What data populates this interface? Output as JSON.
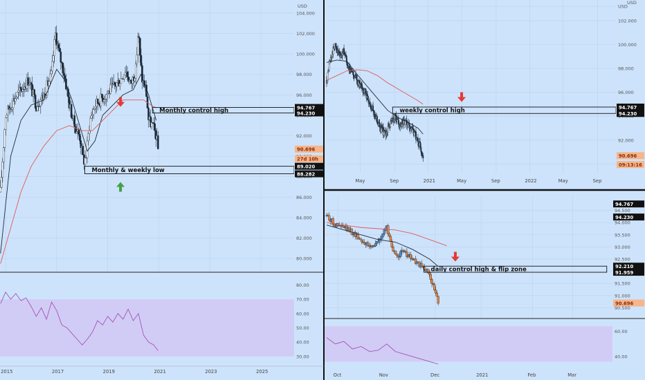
{
  "chart_data": [
    {
      "type": "candlestick",
      "timeframe": "weekly",
      "instrument_currency": "USD",
      "x_tick_labels": [
        "2015",
        "2017",
        "2019",
        "2021",
        "2023",
        "2025"
      ],
      "x_ticks": [
        2015,
        2017,
        2019,
        2021,
        2023,
        2025
      ],
      "ylim": [
        79.0,
        105.0
      ],
      "y_tick_labels": [
        "104.000",
        "102.000",
        "100.000",
        "98.000",
        "96.000",
        "94.000",
        "92.000",
        "90.000",
        "88.000",
        "86.000",
        "84.000",
        "82.000",
        "80.000"
      ],
      "y_ticks": [
        104,
        102,
        100,
        98,
        96,
        94,
        92,
        90,
        88,
        86,
        84,
        82,
        80
      ],
      "price_markers": [
        {
          "text": "94.767",
          "value": 94.767,
          "style": "dark"
        },
        {
          "text": "94.230",
          "value": 94.23,
          "style": "dark"
        },
        {
          "text": "90.696",
          "value": 90.696,
          "style": "orange"
        },
        {
          "text": "27d 10h",
          "value": 89.75,
          "style": "orange"
        },
        {
          "text": "89.020",
          "value": 89.02,
          "style": "dark"
        },
        {
          "text": "88.282",
          "value": 88.282,
          "style": "dark"
        }
      ],
      "zones": [
        {
          "label": "Monthly control high",
          "x_start": 2020.75,
          "x_end": 2027.0,
          "y_low": 94.23,
          "y_high": 94.767
        },
        {
          "label": "Monthly & weekly low",
          "x_start": 2018.1,
          "x_end": 2027.0,
          "y_low": 88.282,
          "y_high": 89.02
        }
      ],
      "arrows": [
        {
          "direction": "down",
          "color": "#e53935",
          "x": 2019.5,
          "y": 95.3
        },
        {
          "direction": "up",
          "color": "#43a047",
          "x": 2019.5,
          "y": 87.0
        }
      ],
      "series": [
        {
          "kind": "close",
          "x": [
            2014.8,
            2015.0,
            2015.3,
            2015.6,
            2015.9,
            2016.2,
            2016.5,
            2016.8,
            2016.95,
            2017.1,
            2017.3,
            2017.5,
            2017.7,
            2017.9,
            2018.05,
            2018.15,
            2018.3,
            2018.5,
            2018.7,
            2018.9,
            2019.1,
            2019.3,
            2019.5,
            2019.7,
            2019.9,
            2020.1,
            2020.2,
            2020.25,
            2020.35,
            2020.5,
            2020.6,
            2020.75,
            2020.9,
            2020.97
          ],
          "values": [
            86.5,
            94.0,
            95.5,
            96.5,
            97.5,
            95.0,
            96.0,
            98.0,
            102.0,
            100.0,
            98.0,
            95.0,
            93.0,
            92.0,
            89.5,
            90.0,
            93.5,
            95.0,
            95.5,
            96.0,
            96.5,
            97.0,
            97.5,
            98.5,
            97.0,
            98.5,
            102.5,
            100.0,
            97.5,
            96.5,
            93.5,
            93.0,
            92.0,
            90.7
          ]
        },
        {
          "kind": "ma_dark",
          "x": [
            2014.8,
            2015.2,
            2015.6,
            2016.0,
            2016.5,
            2017.0,
            2017.3,
            2017.6,
            2017.9,
            2018.2,
            2018.5,
            2018.8,
            2019.2,
            2019.6,
            2020.0,
            2020.3,
            2020.6,
            2020.9
          ],
          "values": [
            80.5,
            90.0,
            93.5,
            95.0,
            95.5,
            98.5,
            97.5,
            95.5,
            93.0,
            90.5,
            91.5,
            94.0,
            95.0,
            96.0,
            96.5,
            98.0,
            96.0,
            93.5
          ]
        },
        {
          "kind": "ma_red",
          "x": [
            2014.8,
            2015.2,
            2015.6,
            2016.0,
            2016.5,
            2017.0,
            2017.5,
            2018.0,
            2018.4,
            2018.8,
            2019.2,
            2019.6,
            2020.0,
            2020.4,
            2020.7,
            2020.9
          ],
          "values": [
            79.5,
            83.0,
            86.5,
            89.0,
            91.0,
            92.5,
            93.0,
            92.5,
            92.5,
            93.5,
            94.5,
            95.5,
            95.5,
            95.5,
            95.0,
            94.7
          ]
        }
      ],
      "oscillator": {
        "ylim": [
          27,
          87
        ],
        "y_tick_labels": [
          "80.00",
          "70.00",
          "60.00",
          "50.00",
          "40.00",
          "30.00"
        ],
        "y_ticks": [
          80,
          70,
          60,
          50,
          40,
          30
        ],
        "band": [
          30,
          70
        ],
        "x": [
          2014.8,
          2015.0,
          2015.2,
          2015.4,
          2015.6,
          2015.8,
          2016.0,
          2016.2,
          2016.4,
          2016.6,
          2016.8,
          2017.0,
          2017.2,
          2017.4,
          2017.6,
          2017.8,
          2018.0,
          2018.2,
          2018.4,
          2018.6,
          2018.8,
          2019.0,
          2019.2,
          2019.4,
          2019.6,
          2019.8,
          2020.0,
          2020.2,
          2020.4,
          2020.6,
          2020.8,
          2020.97
        ],
        "values": [
          67,
          75,
          70,
          74,
          69,
          71,
          65,
          58,
          64,
          56,
          68,
          62,
          52,
          50,
          46,
          42,
          38,
          42,
          47,
          55,
          52,
          58,
          54,
          60,
          56,
          63,
          55,
          60,
          45,
          40,
          38,
          34
        ]
      }
    },
    {
      "type": "candlestick",
      "timeframe": "daily",
      "instrument_currency": "USD",
      "x_tick_labels": [
        "May",
        "Sep",
        "2021",
        "May",
        "Sep",
        "2022",
        "May",
        "Sep"
      ],
      "x_ticks": [
        2020.33,
        2020.67,
        2021.0,
        2021.33,
        2021.67,
        2022.0,
        2022.33,
        2022.67
      ],
      "ylim": [
        89.5,
        103.5
      ],
      "y_tick_labels": [
        "USD",
        "102.000",
        "100.000",
        "98.000",
        "96.000",
        "94.000",
        "92.000",
        "90.000"
      ],
      "y_ticks": [
        103.2,
        102,
        100,
        98,
        96,
        94,
        92,
        90
      ],
      "price_markers": [
        {
          "text": "94.767",
          "value": 94.767,
          "style": "dark"
        },
        {
          "text": "94.230",
          "value": 94.23,
          "style": "dark"
        },
        {
          "text": "90.696",
          "value": 90.696,
          "style": "orange"
        },
        {
          "text": "09:13:16",
          "value": 89.95,
          "style": "orange"
        }
      ],
      "zones": [
        {
          "label": "weekly control high",
          "x_start": 2020.65,
          "x_end": 2022.85,
          "y_low": 94.23,
          "y_high": 94.767
        }
      ],
      "arrows": [
        {
          "direction": "down",
          "color": "#e53935",
          "x": 2021.33,
          "y": 95.6
        }
      ],
      "series": [
        {
          "kind": "close",
          "x": [
            2020.0,
            2020.03,
            2020.08,
            2020.13,
            2020.17,
            2020.22,
            2020.27,
            2020.33,
            2020.38,
            2020.43,
            2020.48,
            2020.53,
            2020.58,
            2020.63,
            2020.68,
            2020.72,
            2020.77,
            2020.82,
            2020.87,
            2020.92,
            2020.95
          ],
          "values": [
            97.0,
            98.5,
            100.0,
            99.0,
            99.5,
            98.0,
            97.5,
            96.5,
            96.0,
            95.0,
            94.0,
            93.0,
            92.5,
            93.5,
            94.0,
            93.0,
            93.5,
            93.0,
            92.5,
            91.5,
            90.7
          ]
        },
        {
          "kind": "ma_dark",
          "x": [
            2020.0,
            2020.1,
            2020.2,
            2020.3,
            2020.4,
            2020.5,
            2020.6,
            2020.7,
            2020.8,
            2020.9,
            2020.95
          ],
          "values": [
            98.5,
            98.7,
            98.6,
            97.5,
            96.5,
            95.5,
            94.5,
            93.9,
            93.5,
            93.0,
            92.5
          ]
        },
        {
          "kind": "ma_red",
          "x": [
            2020.0,
            2020.1,
            2020.2,
            2020.3,
            2020.4,
            2020.5,
            2020.6,
            2020.7,
            2020.8,
            2020.9,
            2020.95
          ],
          "values": [
            97.0,
            97.4,
            97.8,
            97.9,
            97.8,
            97.4,
            96.8,
            96.3,
            95.8,
            95.3,
            95.0
          ]
        }
      ]
    },
    {
      "type": "candlestick",
      "timeframe": "daily",
      "instrument_currency": "USD",
      "x_tick_labels": [
        "Oct",
        "Nov",
        "Dec",
        "2021",
        "Feb",
        "Mar"
      ],
      "x_ticks": [
        2020.75,
        2020.83,
        2020.92,
        2021.0,
        2021.09,
        2021.16
      ],
      "ylim": [
        90.2,
        95.0
      ],
      "y_tick_labels": [
        "94.500",
        "94.000",
        "93.500",
        "93.000",
        "92.500",
        "92.000",
        "91.500",
        "91.000",
        "90.500"
      ],
      "y_ticks": [
        94.5,
        94.0,
        93.5,
        93.0,
        92.5,
        92.0,
        91.5,
        91.0,
        90.5
      ],
      "price_markers": [
        {
          "text": "94.767",
          "value": 94.767,
          "style": "dark"
        },
        {
          "text": "94.230",
          "value": 94.23,
          "style": "dark"
        },
        {
          "text": "92.210",
          "value": 92.21,
          "style": "dark"
        },
        {
          "text": "91.959",
          "value": 91.959,
          "style": "dark"
        },
        {
          "text": "90.696",
          "value": 90.696,
          "style": "orange"
        }
      ],
      "zones": [
        {
          "label": "daily control high & flip zone",
          "x_start": 2020.9,
          "x_end": 2021.22,
          "y_low": 91.959,
          "y_high": 92.21
        }
      ],
      "arrows": [
        {
          "direction": "down",
          "color": "#e53935",
          "x": 2020.955,
          "y": 92.6
        }
      ],
      "series": [
        {
          "kind": "close",
          "x": [
            2020.73,
            2020.745,
            2020.76,
            2020.775,
            2020.79,
            2020.805,
            2020.82,
            2020.835,
            2020.85,
            2020.865,
            2020.88,
            2020.895,
            2020.91,
            2020.925
          ],
          "values": [
            94.3,
            93.9,
            93.8,
            93.6,
            93.3,
            93.0,
            93.2,
            93.8,
            92.6,
            92.8,
            92.5,
            92.2,
            91.9,
            90.7
          ]
        },
        {
          "kind": "ma_dark",
          "x": [
            2020.73,
            2020.76,
            2020.79,
            2020.82,
            2020.85,
            2020.88,
            2020.91,
            2020.925
          ],
          "values": [
            93.9,
            93.7,
            93.5,
            93.3,
            93.2,
            92.9,
            92.5,
            92.2
          ]
        },
        {
          "kind": "ma_red",
          "x": [
            2020.73,
            2020.76,
            2020.79,
            2020.82,
            2020.85,
            2020.88,
            2020.91,
            2020.94
          ],
          "values": [
            94.0,
            93.9,
            93.8,
            93.75,
            93.7,
            93.55,
            93.3,
            93.05
          ]
        }
      ],
      "oscillator": {
        "ylim": [
          34,
          68
        ],
        "y_tick_labels": [
          "60.00",
          "40.00"
        ],
        "y_ticks": [
          60,
          40
        ],
        "band": [
          36,
          64
        ],
        "x": [
          2020.73,
          2020.745,
          2020.76,
          2020.775,
          2020.79,
          2020.805,
          2020.82,
          2020.835,
          2020.85,
          2020.865,
          2020.88,
          2020.895,
          2020.91,
          2020.925
        ],
        "values": [
          55,
          50,
          52,
          46,
          48,
          44,
          45,
          50,
          44,
          42,
          40,
          38,
          36,
          34
        ]
      }
    }
  ]
}
